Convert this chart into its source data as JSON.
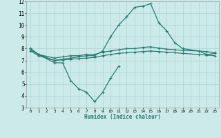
{
  "xlabel": "Humidex (Indice chaleur)",
  "bg_color": "#cceaea",
  "grid_color": "#aad4d4",
  "line_color": "#2a7a72",
  "xmin": -0.5,
  "xmax": 23.5,
  "ymin": 3,
  "ymax": 12,
  "yticks": [
    3,
    4,
    5,
    6,
    7,
    8,
    9,
    10,
    11,
    12
  ],
  "xticks": [
    0,
    1,
    2,
    3,
    4,
    5,
    6,
    7,
    8,
    9,
    10,
    11,
    12,
    13,
    14,
    15,
    16,
    17,
    18,
    19,
    20,
    21,
    22,
    23
  ],
  "line1_x": [
    0,
    1,
    3,
    4,
    5,
    6,
    7,
    8,
    9,
    10,
    11
  ],
  "line1_y": [
    8.0,
    7.5,
    6.8,
    6.8,
    5.3,
    4.6,
    4.3,
    3.5,
    4.3,
    5.5,
    6.5
  ],
  "line2_x": [
    0,
    1,
    3,
    4,
    5,
    6,
    7,
    8,
    9,
    10,
    11,
    12,
    13,
    14,
    15,
    16,
    17,
    18,
    19,
    21,
    22,
    23
  ],
  "line2_y": [
    8.0,
    7.5,
    7.0,
    7.1,
    7.2,
    7.3,
    7.4,
    7.4,
    7.8,
    9.0,
    10.0,
    10.7,
    11.5,
    11.6,
    11.8,
    10.2,
    9.5,
    8.5,
    8.0,
    7.8,
    7.5,
    7.6
  ],
  "line3_x": [
    0,
    1,
    3,
    4,
    5,
    6,
    7,
    8,
    9,
    10,
    11,
    12,
    13,
    14,
    15,
    16,
    17,
    18,
    19,
    21,
    22,
    23
  ],
  "line3_y": [
    7.9,
    7.5,
    7.2,
    7.3,
    7.4,
    7.4,
    7.5,
    7.5,
    7.7,
    7.8,
    7.9,
    8.0,
    8.0,
    8.1,
    8.15,
    8.05,
    7.95,
    7.9,
    7.85,
    7.8,
    7.75,
    7.65
  ],
  "line4_x": [
    0,
    1,
    3,
    4,
    5,
    6,
    7,
    8,
    9,
    10,
    11,
    12,
    13,
    14,
    15,
    16,
    17,
    18,
    19,
    21,
    22,
    23
  ],
  "line4_y": [
    7.8,
    7.4,
    7.0,
    7.05,
    7.1,
    7.15,
    7.2,
    7.25,
    7.4,
    7.5,
    7.6,
    7.65,
    7.7,
    7.75,
    7.8,
    7.75,
    7.7,
    7.65,
    7.6,
    7.5,
    7.45,
    7.4
  ]
}
